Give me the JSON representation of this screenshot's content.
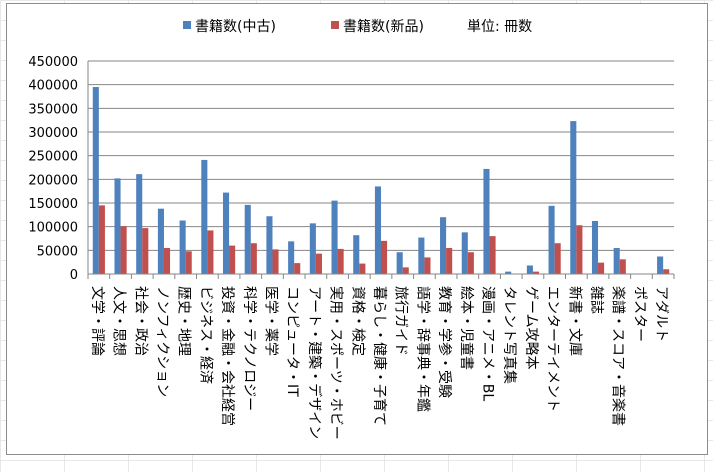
{
  "chart_data": {
    "type": "bar",
    "title": "",
    "xlabel": "",
    "ylabel": "",
    "unit_note": "単位: 冊数",
    "ylim": [
      0,
      450000
    ],
    "yticks": [
      0,
      50000,
      100000,
      150000,
      200000,
      250000,
      300000,
      350000,
      400000,
      450000
    ],
    "grid": true,
    "legend_position": "top",
    "categories": [
      "文学・評論",
      "人文・思想",
      "社会・政治",
      "ノンフィクション",
      "歴史・地理",
      "ビジネス・経済",
      "投資・金融・会社経営",
      "科学・テクノロジー",
      "医学・薬学",
      "コンピュータ・IT",
      "アート・建築・デザイン",
      "実用・スポーツ・ホビー",
      "資格・検定",
      "暮らし・健康・子育て",
      "旅行ガイド",
      "語学・辞事典・年鑑",
      "教育・学参・受験",
      "絵本・児童書",
      "漫画・アニメ・BL",
      "タレント写真集",
      "ゲーム攻略本",
      "エンターテイメント",
      "新書・文庫",
      "雑誌",
      "楽譜・スコア・音楽書",
      "ポスター",
      "アダルト"
    ],
    "series": [
      {
        "name": "書籍数(中古)",
        "color": "#4f81bd",
        "values": [
          395000,
          202000,
          211000,
          138000,
          113000,
          241000,
          172000,
          146000,
          122000,
          69000,
          107000,
          155000,
          82000,
          185000,
          46000,
          77000,
          120000,
          88000,
          222000,
          5000,
          18000,
          144000,
          323000,
          112000,
          55000,
          1000,
          37000
        ]
      },
      {
        "name": "書籍数(新品)",
        "color": "#c0504d",
        "values": [
          145000,
          101000,
          97000,
          55000,
          48000,
          92000,
          60000,
          65000,
          52000,
          23000,
          43000,
          53000,
          22000,
          70000,
          14000,
          35000,
          55000,
          46000,
          80000,
          1000,
          5000,
          65000,
          103000,
          24000,
          31000,
          0,
          10000
        ]
      }
    ]
  }
}
